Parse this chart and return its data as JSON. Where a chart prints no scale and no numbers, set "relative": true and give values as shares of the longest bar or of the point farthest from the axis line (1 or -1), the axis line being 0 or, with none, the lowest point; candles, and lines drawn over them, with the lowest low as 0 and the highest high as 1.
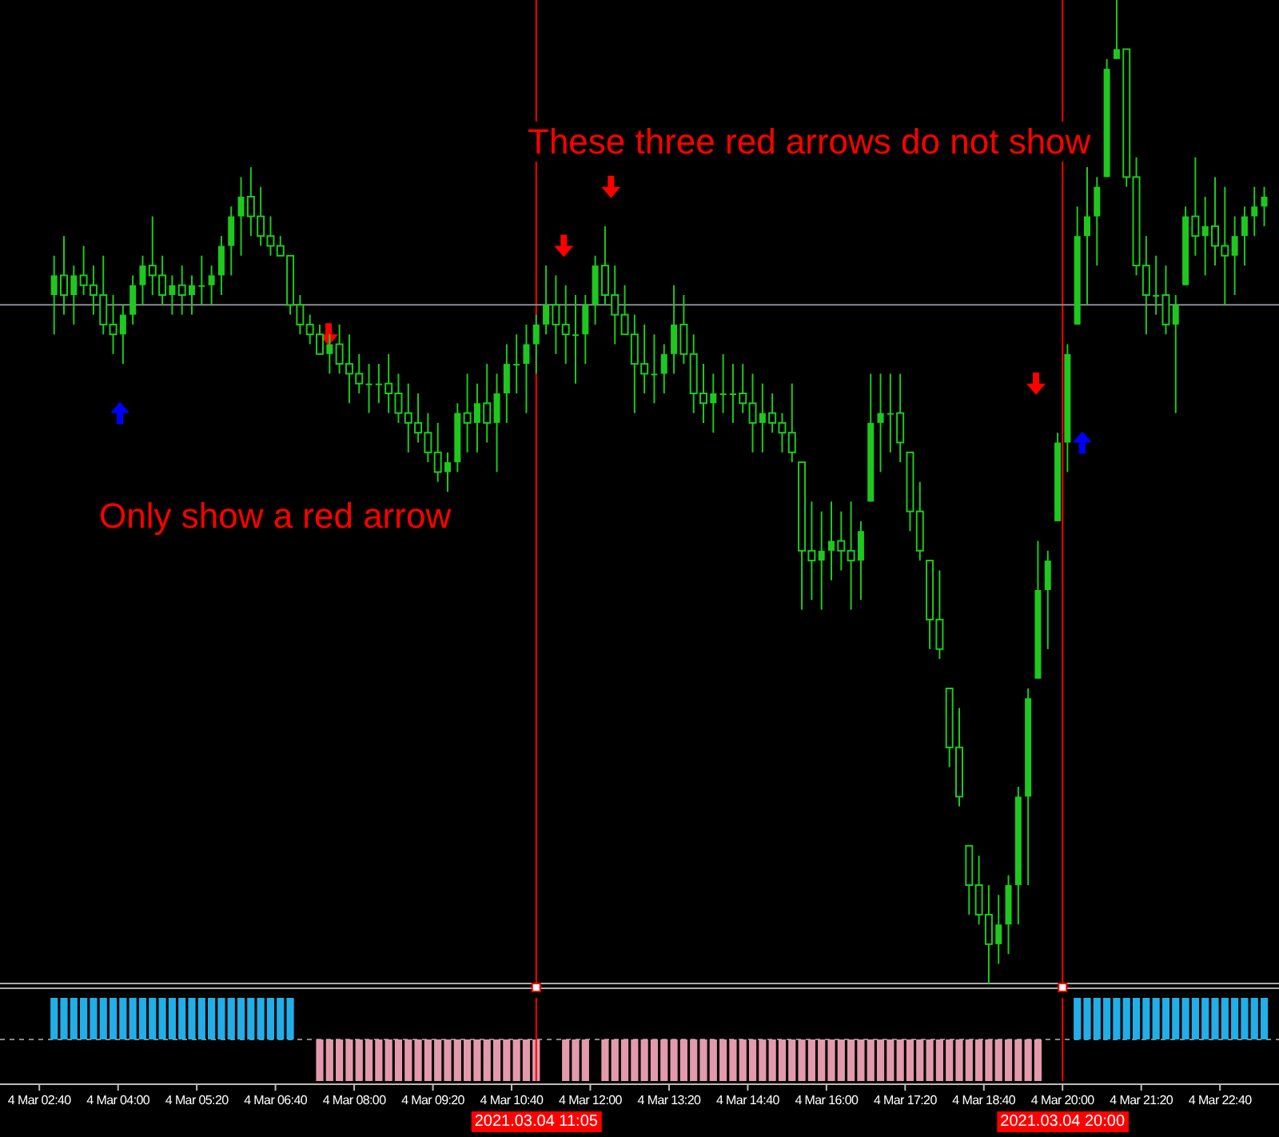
{
  "chart_data": [
    {
      "type": "candlestick",
      "relative": true,
      "tick_labels": false,
      "color": "#1ec81e",
      "xlim": [
        "2021-03-04T02:00",
        "2021-03-04T23:40"
      ],
      "annotations": [
        "These three red arrows do not show",
        "Only show a red arrow"
      ],
      "ref_lines": [
        {
          "axis": "x",
          "value": "2021-03-04T11:05",
          "color": "#ff0000"
        },
        {
          "axis": "x",
          "value": "2021-03-04T20:00",
          "color": "#ff0000"
        },
        {
          "axis": "y",
          "value": 0.69,
          "color": "#8c8c96"
        }
      ],
      "x": [
        "2021-03-04T02:55",
        "2021-03-04T03:05",
        "2021-03-04T03:15",
        "2021-03-04T03:25",
        "2021-03-04T03:35",
        "2021-03-04T03:45",
        "2021-03-04T03:55",
        "2021-03-04T04:05",
        "2021-03-04T04:15",
        "2021-03-04T04:25",
        "2021-03-04T04:35",
        "2021-03-04T04:45",
        "2021-03-04T04:55",
        "2021-03-04T05:05",
        "2021-03-04T05:15",
        "2021-03-04T05:25",
        "2021-03-04T05:35",
        "2021-03-04T05:45",
        "2021-03-04T05:55",
        "2021-03-04T06:05",
        "2021-03-04T06:15",
        "2021-03-04T06:25",
        "2021-03-04T06:35",
        "2021-03-04T06:45",
        "2021-03-04T06:55",
        "2021-03-04T07:05",
        "2021-03-04T07:15",
        "2021-03-04T07:25",
        "2021-03-04T07:35",
        "2021-03-04T07:45",
        "2021-03-04T07:55",
        "2021-03-04T08:05",
        "2021-03-04T08:15",
        "2021-03-04T08:25",
        "2021-03-04T08:35",
        "2021-03-04T08:45",
        "2021-03-04T08:55",
        "2021-03-04T09:05",
        "2021-03-04T09:15",
        "2021-03-04T09:25",
        "2021-03-04T09:35",
        "2021-03-04T09:45",
        "2021-03-04T09:55",
        "2021-03-04T10:05",
        "2021-03-04T10:15",
        "2021-03-04T10:25",
        "2021-03-04T10:35",
        "2021-03-04T10:45",
        "2021-03-04T10:55",
        "2021-03-04T11:05",
        "2021-03-04T11:15",
        "2021-03-04T11:25",
        "2021-03-04T11:35",
        "2021-03-04T11:45",
        "2021-03-04T11:55",
        "2021-03-04T12:05",
        "2021-03-04T12:15",
        "2021-03-04T12:25",
        "2021-03-04T12:35",
        "2021-03-04T12:45",
        "2021-03-04T12:55",
        "2021-03-04T13:05",
        "2021-03-04T13:15",
        "2021-03-04T13:25",
        "2021-03-04T13:35",
        "2021-03-04T13:45",
        "2021-03-04T13:55",
        "2021-03-04T14:05",
        "2021-03-04T14:15",
        "2021-03-04T14:25",
        "2021-03-04T14:35",
        "2021-03-04T14:45",
        "2021-03-04T14:55",
        "2021-03-04T15:05",
        "2021-03-04T15:15",
        "2021-03-04T15:25",
        "2021-03-04T15:35",
        "2021-03-04T15:45",
        "2021-03-04T15:55",
        "2021-03-04T16:05",
        "2021-03-04T16:15",
        "2021-03-04T16:25",
        "2021-03-04T16:35",
        "2021-03-04T16:45",
        "2021-03-04T16:55",
        "2021-03-04T17:05",
        "2021-03-04T17:15",
        "2021-03-04T17:25",
        "2021-03-04T17:35",
        "2021-03-04T17:45",
        "2021-03-04T17:55",
        "2021-03-04T18:05",
        "2021-03-04T18:15",
        "2021-03-04T18:25",
        "2021-03-04T18:35",
        "2021-03-04T18:45",
        "2021-03-04T18:55",
        "2021-03-04T19:05",
        "2021-03-04T19:15",
        "2021-03-04T19:25",
        "2021-03-04T19:35",
        "2021-03-04T19:45",
        "2021-03-04T19:55",
        "2021-03-04T20:05",
        "2021-03-04T20:15",
        "2021-03-04T20:25",
        "2021-03-04T20:35",
        "2021-03-04T20:45",
        "2021-03-04T20:55",
        "2021-03-04T21:05",
        "2021-03-04T21:15",
        "2021-03-04T21:25",
        "2021-03-04T21:35",
        "2021-03-04T21:45",
        "2021-03-04T21:55",
        "2021-03-04T22:05",
        "2021-03-04T22:15",
        "2021-03-04T22:25",
        "2021-03-04T22:35",
        "2021-03-04T22:45",
        "2021-03-04T22:55",
        "2021-03-04T23:05",
        "2021-03-04T23:15",
        "2021-03-04T23:25"
      ],
      "ohlc": [
        [
          0.7,
          0.74,
          0.66,
          0.72
        ],
        [
          0.72,
          0.76,
          0.68,
          0.7
        ],
        [
          0.7,
          0.73,
          0.67,
          0.72
        ],
        [
          0.72,
          0.75,
          0.7,
          0.71
        ],
        [
          0.71,
          0.73,
          0.68,
          0.7
        ],
        [
          0.7,
          0.74,
          0.66,
          0.67
        ],
        [
          0.67,
          0.7,
          0.64,
          0.66
        ],
        [
          0.66,
          0.69,
          0.63,
          0.68
        ],
        [
          0.68,
          0.72,
          0.67,
          0.71
        ],
        [
          0.71,
          0.74,
          0.69,
          0.73
        ],
        [
          0.73,
          0.78,
          0.7,
          0.72
        ],
        [
          0.72,
          0.74,
          0.69,
          0.7
        ],
        [
          0.7,
          0.72,
          0.68,
          0.71
        ],
        [
          0.71,
          0.73,
          0.68,
          0.7
        ],
        [
          0.7,
          0.72,
          0.68,
          0.71
        ],
        [
          0.71,
          0.74,
          0.69,
          0.71
        ],
        [
          0.71,
          0.73,
          0.69,
          0.72
        ],
        [
          0.72,
          0.76,
          0.7,
          0.75
        ],
        [
          0.75,
          0.79,
          0.72,
          0.78
        ],
        [
          0.78,
          0.82,
          0.74,
          0.8
        ],
        [
          0.8,
          0.83,
          0.76,
          0.78
        ],
        [
          0.78,
          0.81,
          0.75,
          0.76
        ],
        [
          0.76,
          0.78,
          0.74,
          0.75
        ],
        [
          0.75,
          0.76,
          0.74,
          0.74
        ],
        [
          0.74,
          0.74,
          0.68,
          0.69
        ],
        [
          0.69,
          0.7,
          0.66,
          0.67
        ],
        [
          0.67,
          0.68,
          0.65,
          0.66
        ],
        [
          0.66,
          0.67,
          0.64,
          0.64
        ],
        [
          0.64,
          0.66,
          0.62,
          0.65
        ],
        [
          0.65,
          0.67,
          0.62,
          0.63
        ],
        [
          0.63,
          0.66,
          0.59,
          0.62
        ],
        [
          0.62,
          0.64,
          0.6,
          0.61
        ],
        [
          0.61,
          0.63,
          0.58,
          0.61
        ],
        [
          0.61,
          0.63,
          0.59,
          0.61
        ],
        [
          0.61,
          0.64,
          0.58,
          0.6
        ],
        [
          0.6,
          0.62,
          0.57,
          0.58
        ],
        [
          0.58,
          0.61,
          0.54,
          0.57
        ],
        [
          0.57,
          0.6,
          0.55,
          0.56
        ],
        [
          0.56,
          0.58,
          0.53,
          0.54
        ],
        [
          0.54,
          0.57,
          0.51,
          0.52
        ],
        [
          0.52,
          0.54,
          0.5,
          0.53
        ],
        [
          0.53,
          0.59,
          0.52,
          0.58
        ],
        [
          0.58,
          0.62,
          0.54,
          0.57
        ],
        [
          0.57,
          0.61,
          0.54,
          0.59
        ],
        [
          0.59,
          0.63,
          0.55,
          0.57
        ],
        [
          0.57,
          0.62,
          0.52,
          0.6
        ],
        [
          0.6,
          0.65,
          0.57,
          0.63
        ],
        [
          0.63,
          0.66,
          0.6,
          0.63
        ],
        [
          0.63,
          0.67,
          0.58,
          0.65
        ],
        [
          0.65,
          0.68,
          0.62,
          0.67
        ],
        [
          0.67,
          0.73,
          0.66,
          0.69
        ],
        [
          0.69,
          0.72,
          0.64,
          0.67
        ],
        [
          0.67,
          0.71,
          0.63,
          0.66
        ],
        [
          0.66,
          0.7,
          0.61,
          0.66
        ],
        [
          0.66,
          0.7,
          0.63,
          0.69
        ],
        [
          0.69,
          0.74,
          0.67,
          0.73
        ],
        [
          0.73,
          0.77,
          0.69,
          0.7
        ],
        [
          0.7,
          0.73,
          0.65,
          0.68
        ],
        [
          0.68,
          0.71,
          0.66,
          0.66
        ],
        [
          0.66,
          0.68,
          0.58,
          0.63
        ],
        [
          0.63,
          0.67,
          0.6,
          0.62
        ],
        [
          0.62,
          0.66,
          0.59,
          0.62
        ],
        [
          0.62,
          0.65,
          0.6,
          0.64
        ],
        [
          0.64,
          0.71,
          0.62,
          0.67
        ],
        [
          0.67,
          0.7,
          0.63,
          0.64
        ],
        [
          0.64,
          0.66,
          0.58,
          0.6
        ],
        [
          0.6,
          0.63,
          0.57,
          0.59
        ],
        [
          0.59,
          0.62,
          0.56,
          0.6
        ],
        [
          0.6,
          0.64,
          0.58,
          0.6
        ],
        [
          0.6,
          0.63,
          0.57,
          0.6
        ],
        [
          0.6,
          0.63,
          0.58,
          0.59
        ],
        [
          0.59,
          0.62,
          0.54,
          0.57
        ],
        [
          0.57,
          0.61,
          0.54,
          0.58
        ],
        [
          0.58,
          0.6,
          0.56,
          0.57
        ],
        [
          0.57,
          0.58,
          0.54,
          0.56
        ],
        [
          0.56,
          0.61,
          0.53,
          0.54
        ],
        [
          0.53,
          0.53,
          0.38,
          0.44
        ],
        [
          0.44,
          0.49,
          0.39,
          0.43
        ],
        [
          0.43,
          0.48,
          0.38,
          0.44
        ],
        [
          0.44,
          0.49,
          0.41,
          0.45
        ],
        [
          0.45,
          0.48,
          0.42,
          0.44
        ],
        [
          0.44,
          0.49,
          0.38,
          0.43
        ],
        [
          0.43,
          0.47,
          0.39,
          0.46
        ],
        [
          0.49,
          0.62,
          0.49,
          0.57
        ],
        [
          0.57,
          0.62,
          0.52,
          0.58
        ],
        [
          0.58,
          0.62,
          0.54,
          0.58
        ],
        [
          0.58,
          0.62,
          0.53,
          0.55
        ],
        [
          0.54,
          0.54,
          0.46,
          0.48
        ],
        [
          0.48,
          0.51,
          0.43,
          0.44
        ],
        [
          0.43,
          0.43,
          0.34,
          0.37
        ],
        [
          0.37,
          0.42,
          0.33,
          0.34
        ],
        [
          0.3,
          0.3,
          0.22,
          0.24
        ],
        [
          0.24,
          0.28,
          0.18,
          0.19
        ],
        [
          0.14,
          0.14,
          0.07,
          0.1
        ],
        [
          0.1,
          0.13,
          0.06,
          0.07
        ],
        [
          0.07,
          0.1,
          0,
          0.04
        ],
        [
          0.04,
          0.09,
          0.02,
          0.06
        ],
        [
          0.06,
          0.11,
          0.03,
          0.1
        ],
        [
          0.1,
          0.2,
          0.06,
          0.19
        ],
        [
          0.19,
          0.3,
          0.1,
          0.29
        ],
        [
          0.31,
          0.45,
          0.31,
          0.4
        ],
        [
          0.4,
          0.44,
          0.34,
          0.43
        ],
        [
          0.47,
          0.56,
          0.47,
          0.55
        ],
        [
          0.55,
          0.65,
          0.52,
          0.64
        ],
        [
          0.67,
          0.79,
          0.67,
          0.76
        ],
        [
          0.76,
          0.83,
          0.69,
          0.78
        ],
        [
          0.78,
          0.82,
          0.73,
          0.81
        ],
        [
          0.82,
          0.94,
          0.82,
          0.93
        ],
        [
          0.94,
          1,
          0.94,
          0.95
        ],
        [
          0.95,
          0.95,
          0.81,
          0.82
        ],
        [
          0.82,
          0.84,
          0.72,
          0.73
        ],
        [
          0.73,
          0.76,
          0.66,
          0.7
        ],
        [
          0.7,
          0.74,
          0.68,
          0.7
        ],
        [
          0.7,
          0.73,
          0.66,
          0.67
        ],
        [
          0.67,
          0.7,
          0.58,
          0.69
        ],
        [
          0.71,
          0.79,
          0.71,
          0.78
        ],
        [
          0.78,
          0.84,
          0.74,
          0.76
        ],
        [
          0.76,
          0.8,
          0.72,
          0.77
        ],
        [
          0.77,
          0.82,
          0.73,
          0.75
        ],
        [
          0.75,
          0.81,
          0.69,
          0.74
        ],
        [
          0.74,
          0.78,
          0.7,
          0.76
        ],
        [
          0.76,
          0.79,
          0.73,
          0.78
        ],
        [
          0.78,
          0.81,
          0.76,
          0.79
        ],
        [
          0.79,
          0.81,
          0.77,
          0.8
        ]
      ]
    },
    {
      "type": "bar",
      "relative": true,
      "tick_labels": "x",
      "xlim": [
        "2021-03-04T02:00",
        "2021-03-04T23:40"
      ],
      "x": [
        "2021-03-04T02:55",
        "2021-03-04T03:05",
        "2021-03-04T03:15",
        "2021-03-04T03:25",
        "2021-03-04T03:35",
        "2021-03-04T03:45",
        "2021-03-04T03:55",
        "2021-03-04T04:05",
        "2021-03-04T04:15",
        "2021-03-04T04:25",
        "2021-03-04T04:35",
        "2021-03-04T04:45",
        "2021-03-04T04:55",
        "2021-03-04T05:05",
        "2021-03-04T05:15",
        "2021-03-04T05:25",
        "2021-03-04T05:35",
        "2021-03-04T05:45",
        "2021-03-04T05:55",
        "2021-03-04T06:05",
        "2021-03-04T06:15",
        "2021-03-04T06:25",
        "2021-03-04T06:35",
        "2021-03-04T06:45",
        "2021-03-04T06:55",
        "2021-03-04T07:25",
        "2021-03-04T07:35",
        "2021-03-04T07:45",
        "2021-03-04T07:55",
        "2021-03-04T08:05",
        "2021-03-04T08:15",
        "2021-03-04T08:25",
        "2021-03-04T08:35",
        "2021-03-04T08:45",
        "2021-03-04T08:55",
        "2021-03-04T09:05",
        "2021-03-04T09:15",
        "2021-03-04T09:25",
        "2021-03-04T09:35",
        "2021-03-04T09:45",
        "2021-03-04T09:55",
        "2021-03-04T10:05",
        "2021-03-04T10:15",
        "2021-03-04T10:25",
        "2021-03-04T10:35",
        "2021-03-04T10:45",
        "2021-03-04T10:55",
        "2021-03-04T11:05",
        "2021-03-04T11:35",
        "2021-03-04T11:45",
        "2021-03-04T11:55",
        "2021-03-04T12:15",
        "2021-03-04T12:25",
        "2021-03-04T12:35",
        "2021-03-04T12:45",
        "2021-03-04T12:55",
        "2021-03-04T13:05",
        "2021-03-04T13:15",
        "2021-03-04T13:25",
        "2021-03-04T13:35",
        "2021-03-04T13:45",
        "2021-03-04T13:55",
        "2021-03-04T14:05",
        "2021-03-04T14:15",
        "2021-03-04T14:25",
        "2021-03-04T14:35",
        "2021-03-04T14:45",
        "2021-03-04T14:55",
        "2021-03-04T15:05",
        "2021-03-04T15:15",
        "2021-03-04T15:25",
        "2021-03-04T15:35",
        "2021-03-04T15:45",
        "2021-03-04T15:55",
        "2021-03-04T16:05",
        "2021-03-04T16:15",
        "2021-03-04T16:25",
        "2021-03-04T16:35",
        "2021-03-04T16:45",
        "2021-03-04T16:55",
        "2021-03-04T17:05",
        "2021-03-04T17:15",
        "2021-03-04T17:25",
        "2021-03-04T17:35",
        "2021-03-04T17:45",
        "2021-03-04T17:55",
        "2021-03-04T18:05",
        "2021-03-04T18:15",
        "2021-03-04T18:25",
        "2021-03-04T18:35",
        "2021-03-04T18:45",
        "2021-03-04T18:55",
        "2021-03-04T19:05",
        "2021-03-04T19:15",
        "2021-03-04T19:25",
        "2021-03-04T19:35",
        "2021-03-04T20:15",
        "2021-03-04T20:25",
        "2021-03-04T20:35",
        "2021-03-04T20:45",
        "2021-03-04T20:55",
        "2021-03-04T21:05",
        "2021-03-04T21:15",
        "2021-03-04T21:25",
        "2021-03-04T21:35",
        "2021-03-04T21:45",
        "2021-03-04T21:55",
        "2021-03-04T22:05",
        "2021-03-04T22:15",
        "2021-03-04T22:25",
        "2021-03-04T22:35",
        "2021-03-04T22:45",
        "2021-03-04T22:55",
        "2021-03-04T23:05",
        "2021-03-04T23:15",
        "2021-03-04T23:25"
      ],
      "xticks": [
        {
          "value": "2021-03-04T02:40",
          "label": "4 Mar 02:40"
        },
        {
          "value": "2021-03-04T04:00",
          "label": "4 Mar 04:00"
        },
        {
          "value": "2021-03-04T05:20",
          "label": "4 Mar 05:20"
        },
        {
          "value": "2021-03-04T06:40",
          "label": "4 Mar 06:40"
        },
        {
          "value": "2021-03-04T08:00",
          "label": "4 Mar 08:00"
        },
        {
          "value": "2021-03-04T09:20",
          "label": "4 Mar 09:20"
        },
        {
          "value": "2021-03-04T10:40",
          "label": "4 Mar 10:40"
        },
        {
          "value": "2021-03-04T12:00",
          "label": "4 Mar 12:00"
        },
        {
          "value": "2021-03-04T13:20",
          "label": "4 Mar 13:20"
        },
        {
          "value": "2021-03-04T14:40",
          "label": "4 Mar 14:40"
        },
        {
          "value": "2021-03-04T16:00",
          "label": "4 Mar 16:00"
        },
        {
          "value": "2021-03-04T17:20",
          "label": "4 Mar 17:20"
        },
        {
          "value": "2021-03-04T18:40",
          "label": "4 Mar 18:40"
        },
        {
          "value": "2021-03-04T20:00",
          "label": "4 Mar 20:00"
        },
        {
          "value": "2021-03-04T21:20",
          "label": "4 Mar 21:20"
        },
        {
          "value": "2021-03-04T22:40",
          "label": "4 Mar 22:40"
        }
      ],
      "ref_lines": [
        {
          "axis": "x",
          "value": "2021-03-04T11:05",
          "label": "2021.03.04 11:05",
          "color": "#ff0000"
        },
        {
          "axis": "x",
          "value": "2021-03-04T20:00",
          "label": "2021.03.04 20:00",
          "color": "#ff0000"
        },
        {
          "axis": "y",
          "value": 0,
          "color": "#888888",
          "line_style": "dashed"
        }
      ],
      "series": [
        {
          "color": "#22aee6",
          "values": [
            1,
            1,
            1,
            1,
            1,
            1,
            1,
            1,
            1,
            1,
            1,
            1,
            1,
            1,
            1,
            1,
            1,
            1,
            1,
            1,
            1,
            1,
            1,
            1,
            1,
            null,
            null,
            null,
            null,
            null,
            null,
            null,
            null,
            null,
            null,
            null,
            null,
            null,
            null,
            null,
            null,
            null,
            null,
            null,
            null,
            null,
            null,
            null,
            null,
            null,
            null,
            null,
            null,
            null,
            null,
            null,
            null,
            null,
            null,
            null,
            null,
            null,
            null,
            null,
            null,
            null,
            null,
            null,
            null,
            null,
            null,
            null,
            null,
            null,
            null,
            null,
            null,
            null,
            null,
            null,
            null,
            null,
            null,
            null,
            null,
            null,
            null,
            null,
            null,
            null,
            null,
            null,
            null,
            null,
            null,
            null,
            1,
            1,
            1,
            1,
            1,
            1,
            1,
            1,
            1,
            1,
            1,
            1,
            1,
            1,
            1,
            1,
            1,
            1,
            1,
            1
          ]
        },
        {
          "color": "#e39aac",
          "values": [
            null,
            null,
            null,
            null,
            null,
            null,
            null,
            null,
            null,
            null,
            null,
            null,
            null,
            null,
            null,
            null,
            null,
            null,
            null,
            null,
            null,
            null,
            null,
            null,
            null,
            -1,
            -1,
            -1,
            -1,
            -1,
            -1,
            -1,
            -1,
            -1,
            -1,
            -1,
            -1,
            -1,
            -1,
            -1,
            -1,
            -1,
            -1,
            -1,
            -1,
            -1,
            -1,
            -1,
            -1,
            -1,
            -1,
            -1,
            -1,
            -1,
            -1,
            -1,
            -1,
            -1,
            -1,
            -1,
            -1,
            -1,
            -1,
            -1,
            -1,
            -1,
            -1,
            -1,
            -1,
            -1,
            -1,
            -1,
            -1,
            -1,
            -1,
            -1,
            -1,
            -1,
            -1,
            -1,
            -1,
            -1,
            -1,
            -1,
            -1,
            -1,
            -1,
            -1,
            -1,
            -1,
            -1,
            -1,
            -1,
            -1,
            -1,
            -1,
            null,
            null,
            null,
            null,
            null,
            null,
            null,
            null,
            null,
            null,
            null,
            null,
            null,
            null,
            null,
            null,
            null,
            null,
            null,
            null
          ]
        }
      ]
    }
  ]
}
